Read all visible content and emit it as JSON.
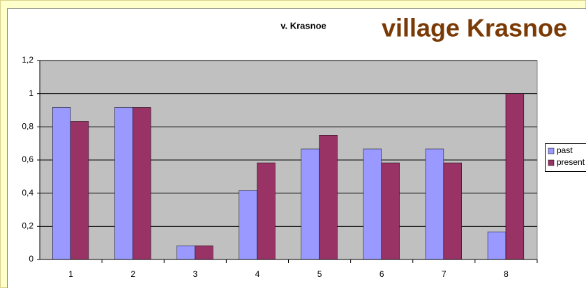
{
  "chart_data": {
    "type": "bar",
    "title": "v. Krasnoe",
    "subtitle": "village Krasnoe",
    "categories": [
      "1",
      "2",
      "3",
      "4",
      "5",
      "6",
      "7",
      "8"
    ],
    "series": [
      {
        "name": "past",
        "color": "#9999ff",
        "values": [
          0.917,
          0.917,
          0.083,
          0.417,
          0.667,
          0.667,
          0.667,
          0.167
        ]
      },
      {
        "name": "present",
        "color": "#993366",
        "values": [
          0.833,
          0.917,
          0.083,
          0.583,
          0.75,
          0.583,
          0.583,
          1.0
        ]
      }
    ],
    "ylim": [
      0,
      1.2
    ],
    "yticks": [
      0,
      {
        "value": 0.2,
        "label": "0,2"
      },
      {
        "value": 0.4,
        "label": "0,4"
      },
      {
        "value": 0.6,
        "label": "0,6"
      },
      {
        "value": 0.8,
        "label": "0,8"
      },
      1,
      {
        "value": 1.2,
        "label": "1,2"
      }
    ],
    "grid": true,
    "legend": "right"
  }
}
